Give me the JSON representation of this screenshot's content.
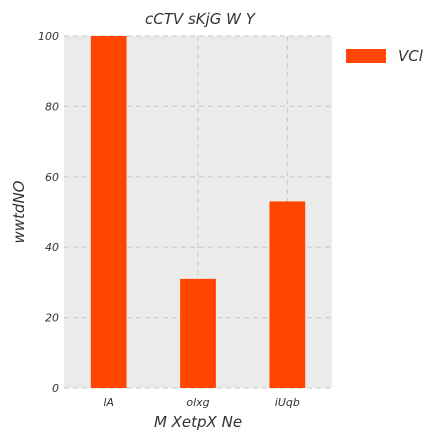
{
  "chart_data": {
    "type": "bar",
    "title": "cCTV  sKjG W Y",
    "xlabel": "M  XetpX Ne",
    "ylabel": "wwtdNO",
    "categories": [
      "lA",
      "olxg",
      "iUqb"
    ],
    "series": [
      {
        "name": "VCl",
        "values": [
          100,
          31,
          53
        ]
      }
    ],
    "ylim": [
      0,
      100
    ],
    "yticks": [
      0,
      20,
      40,
      60,
      80,
      100
    ],
    "grid": true,
    "legend": "top-right",
    "colors": {
      "bar": "#ff4500",
      "plot_background": "#ebebeb",
      "grid": "#c8c8c8"
    }
  }
}
